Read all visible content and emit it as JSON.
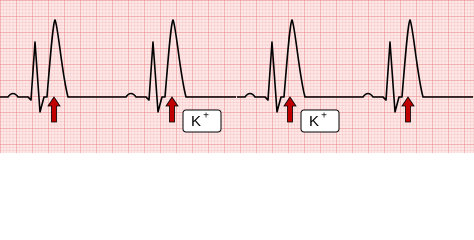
{
  "labels": [
    {
      "text": "K",
      "sup": "+"
    },
    {
      "text": "K",
      "sup": "+"
    }
  ]
}
